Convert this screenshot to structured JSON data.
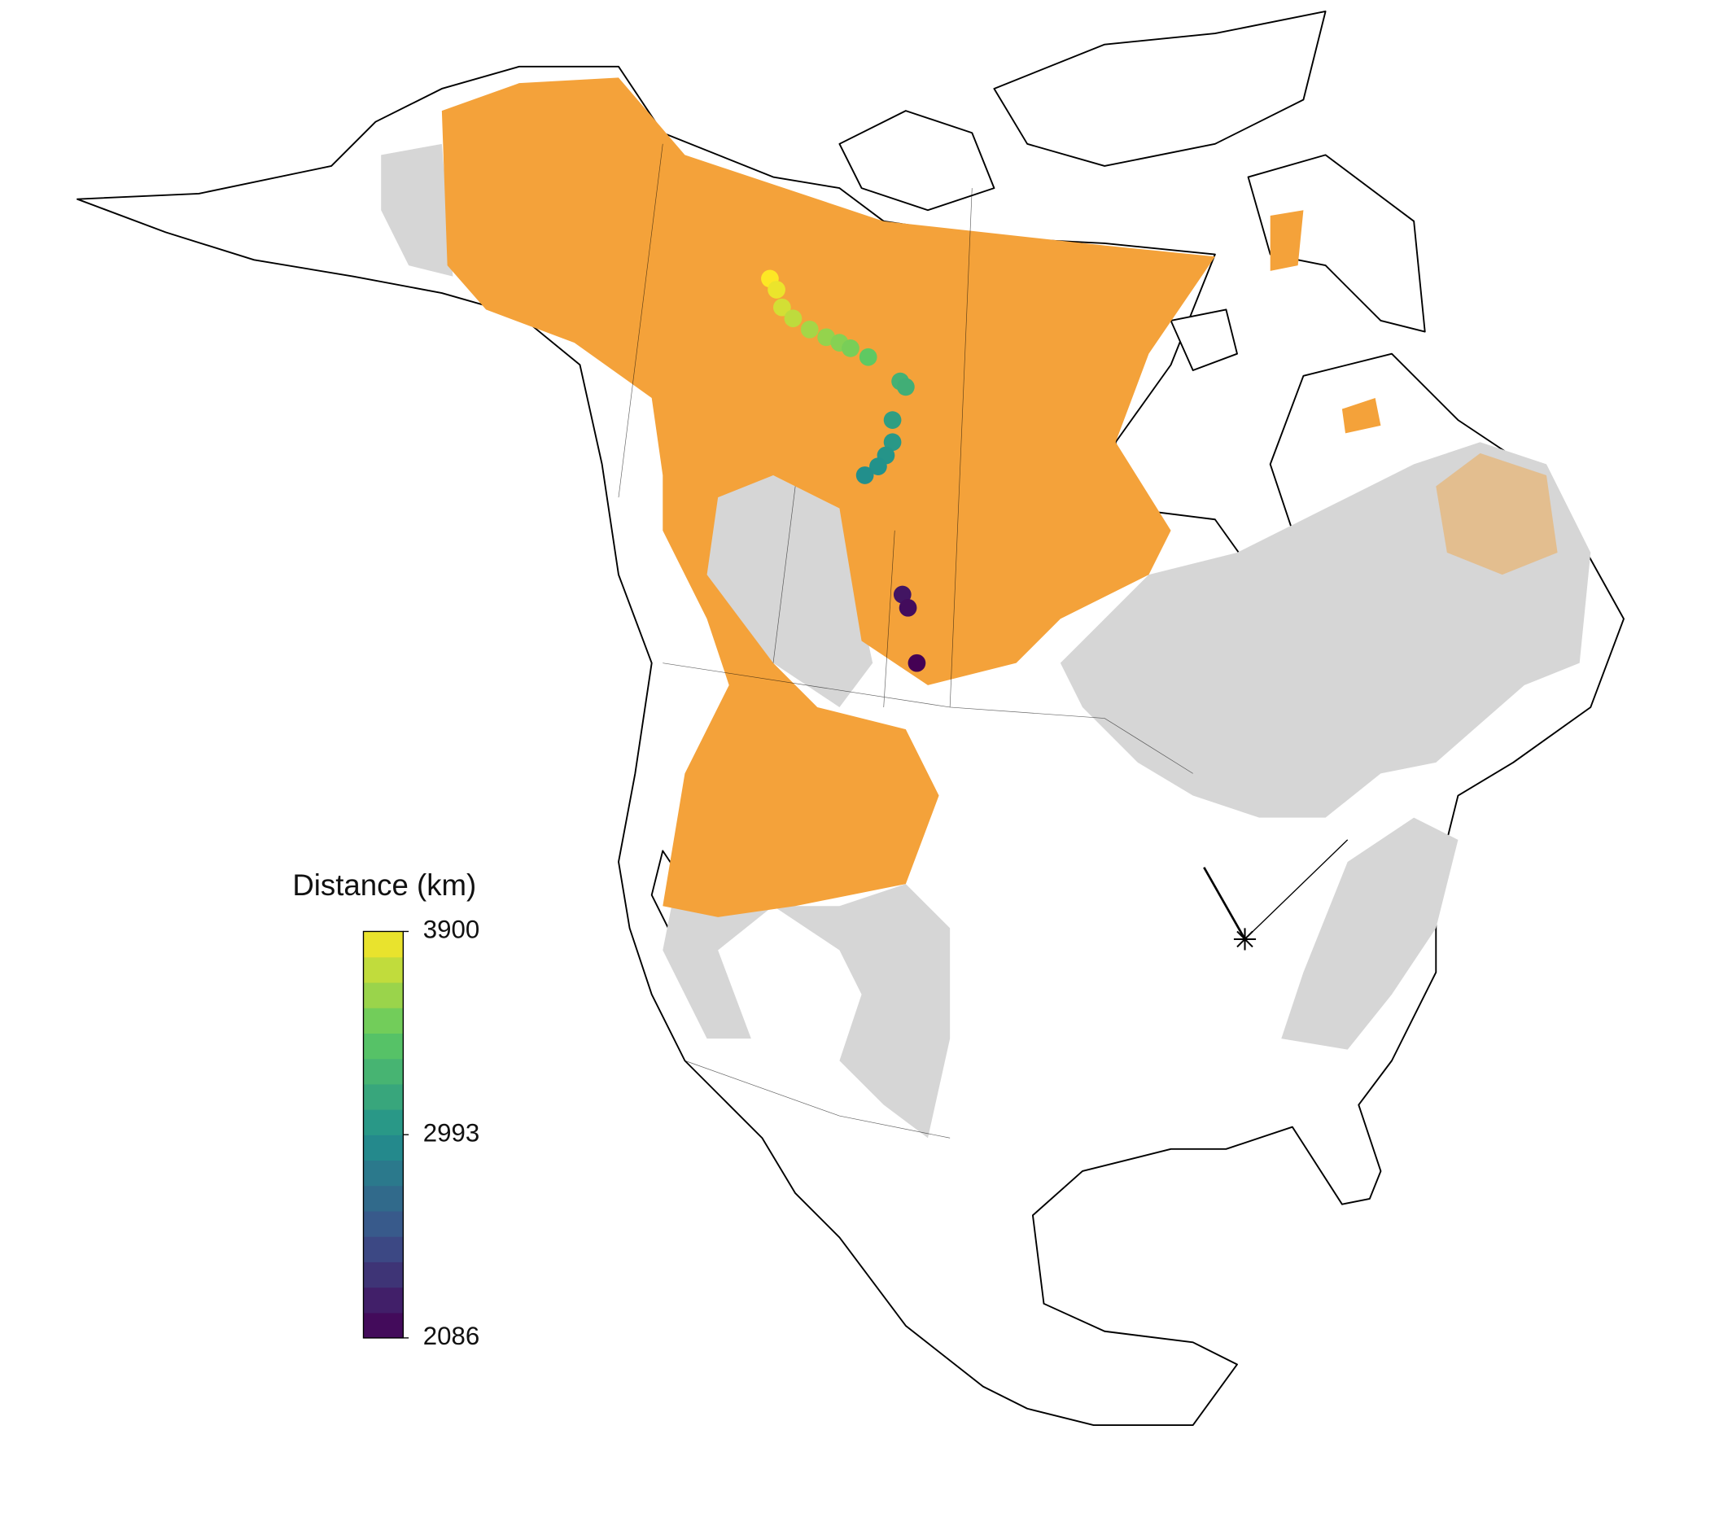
{
  "map_data": {
    "legend": {
      "title": "Distance (km)",
      "range": [
        2086,
        3900
      ],
      "ticks": [
        3900,
        2993,
        2086
      ]
    },
    "points": [
      3900,
      3850,
      3780,
      3720,
      3650,
      3600,
      3560,
      3520,
      3450,
      3250,
      3230,
      3100,
      3050,
      3020,
      3000,
      2980,
      2200,
      2150,
      2086
    ]
  }
}
